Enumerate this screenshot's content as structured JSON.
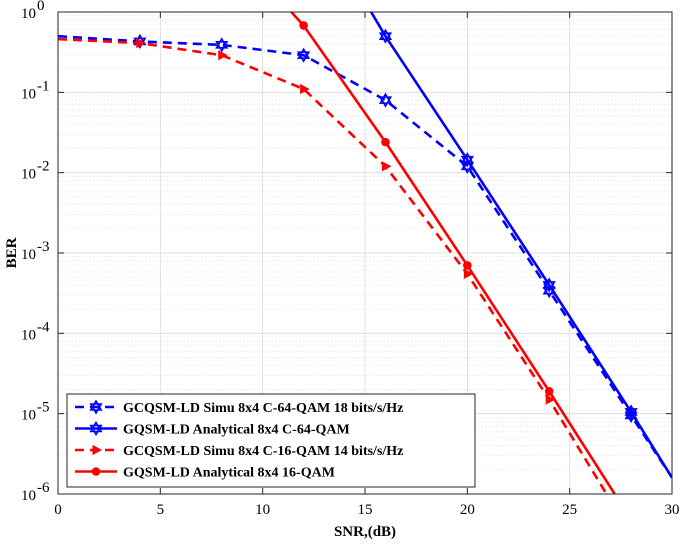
{
  "chart_data": {
    "type": "line",
    "title": "",
    "xlabel": "SNR,(dB)",
    "ylabel": "BER",
    "xlim": [
      0,
      30
    ],
    "ylim": [
      1e-06,
      1
    ],
    "yscale": "log",
    "grid": true,
    "minor_grid": true,
    "legend_position": "bottom-left",
    "x_tick_labels": [
      "0",
      "5",
      "10",
      "15",
      "20",
      "25",
      "30"
    ],
    "x_ticks": [
      0,
      5,
      10,
      15,
      20,
      25,
      30
    ],
    "y_ticks": [
      1e-06,
      1e-05,
      0.0001,
      0.001,
      0.01,
      0.1,
      1
    ],
    "y_tick_labels": [
      {
        "base": "10",
        "exp": "-6"
      },
      {
        "base": "10",
        "exp": "-5"
      },
      {
        "base": "10",
        "exp": "-4"
      },
      {
        "base": "10",
        "exp": "-3"
      },
      {
        "base": "10",
        "exp": "-2"
      },
      {
        "base": "10",
        "exp": "-1"
      },
      {
        "base": "10",
        "exp": "0"
      }
    ],
    "series": [
      {
        "name": "GCQSM-LD Simu 8x4 C-64-QAM 18 bits/s/Hz",
        "color": "#0000ff",
        "line_style": "dashed",
        "marker": "hexagram",
        "x": [
          0,
          4,
          8,
          12,
          16,
          20,
          24,
          28,
          30
        ],
        "y": [
          0.5,
          0.43,
          0.39,
          0.29,
          0.08,
          0.012,
          0.00034,
          9.5e-06,
          1.6e-06
        ]
      },
      {
        "name": "GQSM-LD Analytical 8x4 C-64-QAM",
        "color": "#0000ff",
        "line_style": "solid",
        "marker": "hexagram",
        "x": [
          15.3,
          16,
          20,
          24,
          28,
          30
        ],
        "y": [
          1.0,
          0.5,
          0.0145,
          0.0004,
          1.05e-05,
          1.6e-06
        ]
      },
      {
        "name": "GCQSM-LD Simu 8x4 C-16-QAM 14 bits/s/Hz",
        "color": "#ff0000",
        "line_style": "dashed",
        "marker": "triangle-right",
        "x": [
          0,
          4,
          8,
          12,
          16,
          20,
          24,
          26.8
        ],
        "y": [
          0.46,
          0.41,
          0.29,
          0.11,
          0.012,
          0.00055,
          1.5e-05,
          1e-06
        ]
      },
      {
        "name": "GQSM-LD Analytical 8x4 16-QAM",
        "color": "#ff0000",
        "line_style": "solid",
        "marker": "dot",
        "x": [
          11.4,
          12,
          16,
          20,
          24,
          27.2
        ],
        "y": [
          1.0,
          0.68,
          0.024,
          0.0007,
          1.9e-05,
          1e-06
        ]
      }
    ]
  }
}
